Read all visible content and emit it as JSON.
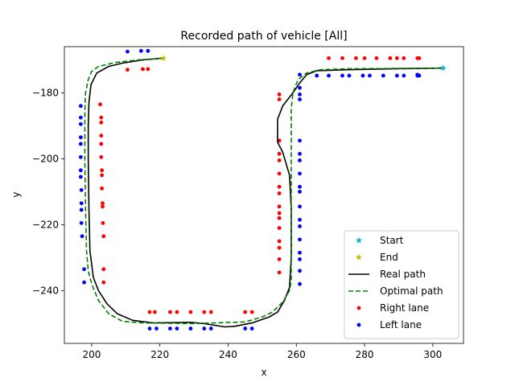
{
  "chart_data": {
    "type": "line",
    "title": "Recorded path of vehicle [All]",
    "xlabel": "x",
    "ylabel": "y",
    "xlim": [
      192,
      309
    ],
    "ylim": [
      -256,
      -166
    ],
    "xticks": [
      200,
      220,
      240,
      260,
      280,
      300
    ],
    "yticks": [
      -180,
      -200,
      -220,
      -240
    ],
    "grid": false,
    "legend_position": "lower-right",
    "series": [
      {
        "name": "Start",
        "kind": "star",
        "color": "#00bfbf",
        "points": [
          [
            303,
            -172.5
          ]
        ]
      },
      {
        "name": "End",
        "kind": "star",
        "color": "#bfbf00",
        "points": [
          [
            221,
            -169.5
          ]
        ]
      },
      {
        "name": "Real path",
        "kind": "line",
        "color": "#000000",
        "dash": "",
        "points": [
          [
            221,
            -169.5
          ],
          [
            215,
            -170
          ],
          [
            209,
            -171
          ],
          [
            205,
            -172
          ],
          [
            201.5,
            -174
          ],
          [
            199.8,
            -177.5
          ],
          [
            199.2,
            -183
          ],
          [
            199,
            -190
          ],
          [
            199,
            -200
          ],
          [
            199.2,
            -215
          ],
          [
            199.5,
            -228
          ],
          [
            200.5,
            -236
          ],
          [
            202,
            -240
          ],
          [
            204.5,
            -244
          ],
          [
            207.5,
            -247
          ],
          [
            212,
            -249
          ],
          [
            218,
            -249.8
          ],
          [
            229,
            -249.6
          ],
          [
            233,
            -250
          ],
          [
            239,
            -251
          ],
          [
            242,
            -250.8
          ],
          [
            247,
            -249.8
          ],
          [
            252,
            -248
          ],
          [
            254.5,
            -246.5
          ],
          [
            256.5,
            -243
          ],
          [
            258,
            -239
          ],
          [
            258.5,
            -230
          ],
          [
            258.5,
            -215
          ],
          [
            258,
            -205
          ],
          [
            256,
            -198
          ],
          [
            254.5,
            -195
          ],
          [
            254.5,
            -188
          ],
          [
            256,
            -184
          ],
          [
            259,
            -180
          ],
          [
            261,
            -177
          ],
          [
            263,
            -174.5
          ],
          [
            266,
            -173.3
          ],
          [
            275,
            -173
          ],
          [
            290,
            -172.7
          ],
          [
            303,
            -172.5
          ]
        ]
      },
      {
        "name": "Optimal path",
        "kind": "line",
        "color": "#008000",
        "dash": "6,3",
        "points": [
          [
            221,
            -169.5
          ],
          [
            214,
            -170
          ],
          [
            207,
            -170.8
          ],
          [
            202,
            -172
          ],
          [
            200,
            -173.5
          ],
          [
            199,
            -176
          ],
          [
            198.2,
            -180
          ],
          [
            198,
            -186
          ],
          [
            198,
            -200
          ],
          [
            198.2,
            -215
          ],
          [
            198.5,
            -228
          ],
          [
            199,
            -234
          ],
          [
            200,
            -238
          ],
          [
            202,
            -243
          ],
          [
            205,
            -247
          ],
          [
            209,
            -249.3
          ],
          [
            215,
            -249.8
          ],
          [
            230,
            -250
          ],
          [
            245,
            -249.5
          ],
          [
            250,
            -248
          ],
          [
            253,
            -246.5
          ],
          [
            256,
            -243.5
          ],
          [
            258,
            -240
          ],
          [
            258.5,
            -237
          ],
          [
            258.5,
            -215
          ],
          [
            258.5,
            -195
          ],
          [
            258.5,
            -185
          ],
          [
            259,
            -180
          ],
          [
            260.5,
            -176
          ],
          [
            263,
            -174
          ],
          [
            267,
            -173
          ],
          [
            275,
            -172.7
          ],
          [
            290,
            -172.6
          ],
          [
            303,
            -172.5
          ]
        ]
      },
      {
        "name": "Right lane",
        "kind": "dots",
        "color": "#ff0000",
        "points": [
          [
            210.5,
            -173
          ],
          [
            215,
            -172.8
          ],
          [
            216.5,
            -172.8
          ],
          [
            202.5,
            -183.5
          ],
          [
            202.8,
            -187.5
          ],
          [
            202.8,
            -189
          ],
          [
            202.8,
            -193
          ],
          [
            202.8,
            -195.5
          ],
          [
            202.8,
            -199.5
          ],
          [
            203,
            -203.5
          ],
          [
            203,
            -205
          ],
          [
            203,
            -209
          ],
          [
            203.2,
            -213.5
          ],
          [
            203.2,
            -214.5
          ],
          [
            203.3,
            -219.5
          ],
          [
            203.5,
            -223.5
          ],
          [
            203.5,
            -233.5
          ],
          [
            203.5,
            -237.5
          ],
          [
            217,
            -246.5
          ],
          [
            218.5,
            -246.5
          ],
          [
            223,
            -246.5
          ],
          [
            225,
            -246.5
          ],
          [
            229,
            -246.5
          ],
          [
            233,
            -246.5
          ],
          [
            235,
            -246.5
          ],
          [
            245,
            -246.5
          ],
          [
            247,
            -246.5
          ],
          [
            255,
            -234.5
          ],
          [
            255,
            -230.5
          ],
          [
            255,
            -227
          ],
          [
            255,
            -225
          ],
          [
            255,
            -221
          ],
          [
            255,
            -218
          ],
          [
            255,
            -216.5
          ],
          [
            255,
            -214.5
          ],
          [
            255,
            -210.5
          ],
          [
            255,
            -208.5
          ],
          [
            255,
            -204.5
          ],
          [
            255,
            -200.5
          ],
          [
            255,
            -198.5
          ],
          [
            255,
            -194.5
          ],
          [
            255,
            -182
          ],
          [
            255,
            -180.5
          ],
          [
            269.5,
            -169.5
          ],
          [
            273.5,
            -169.5
          ],
          [
            277.5,
            -169.5
          ],
          [
            280,
            -169.5
          ],
          [
            283.5,
            -169.5
          ],
          [
            287.5,
            -169.5
          ],
          [
            289.5,
            -169.5
          ],
          [
            291.5,
            -169.5
          ],
          [
            295.5,
            -169.5
          ],
          [
            296,
            -169.5
          ]
        ]
      },
      {
        "name": "Left lane",
        "kind": "dots",
        "color": "#0000ff",
        "points": [
          [
            210.5,
            -167.5
          ],
          [
            214.5,
            -167.3
          ],
          [
            216.5,
            -167.3
          ],
          [
            196.8,
            -184
          ],
          [
            196.8,
            -187.5
          ],
          [
            196.8,
            -189.5
          ],
          [
            196.8,
            -193.5
          ],
          [
            196.8,
            -195.5
          ],
          [
            196.8,
            -199.5
          ],
          [
            196.8,
            -203.5
          ],
          [
            196.8,
            -205.5
          ],
          [
            197,
            -209.5
          ],
          [
            197,
            -213.5
          ],
          [
            197,
            -215.5
          ],
          [
            197,
            -219.5
          ],
          [
            197.2,
            -223.5
          ],
          [
            197.8,
            -233.5
          ],
          [
            197.8,
            -237.5
          ],
          [
            217,
            -251.5
          ],
          [
            219,
            -251.5
          ],
          [
            223,
            -251.5
          ],
          [
            225,
            -251.5
          ],
          [
            229,
            -251.5
          ],
          [
            233,
            -251.5
          ],
          [
            235,
            -251.5
          ],
          [
            245,
            -251.5
          ],
          [
            247,
            -251.5
          ],
          [
            261,
            -238
          ],
          [
            261,
            -234
          ],
          [
            261,
            -230.5
          ],
          [
            261,
            -228.5
          ],
          [
            261,
            -224.5
          ],
          [
            261,
            -220.5
          ],
          [
            261,
            -218.5
          ],
          [
            261,
            -214.5
          ],
          [
            261,
            -210
          ],
          [
            261,
            -208.5
          ],
          [
            261,
            -204.5
          ],
          [
            261,
            -200.5
          ],
          [
            261,
            -198.5
          ],
          [
            261,
            -194.5
          ],
          [
            261,
            -182
          ],
          [
            261,
            -180.5
          ],
          [
            261,
            -178.5
          ],
          [
            261,
            -174.5
          ],
          [
            266,
            -174.8
          ],
          [
            269.5,
            -174.8
          ],
          [
            273.5,
            -174.8
          ],
          [
            275.5,
            -174.8
          ],
          [
            279.5,
            -174.8
          ],
          [
            281.5,
            -174.8
          ],
          [
            285.5,
            -174.8
          ],
          [
            289.5,
            -174.8
          ],
          [
            291.5,
            -174.8
          ],
          [
            295.5,
            -174.8
          ],
          [
            295.5,
            -174.5
          ],
          [
            296,
            -174.8
          ]
        ]
      }
    ]
  }
}
